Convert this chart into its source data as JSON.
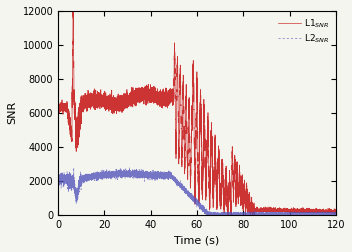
{
  "title": "",
  "xlabel": "Time (s)",
  "ylabel": "SNR",
  "xlim": [
    0,
    120
  ],
  "ylim": [
    0,
    12000
  ],
  "yticks": [
    0,
    2000,
    4000,
    6000,
    8000,
    10000,
    12000
  ],
  "xticks": [
    0,
    20,
    40,
    60,
    80,
    100,
    120
  ],
  "l1_color": "#cc3333",
  "l2_color": "#5555bb",
  "legend_labels": [
    "L1$_{SNR}$",
    "L2$_{SNR}$"
  ],
  "background_color": "#f5f5f0",
  "seed": 42
}
